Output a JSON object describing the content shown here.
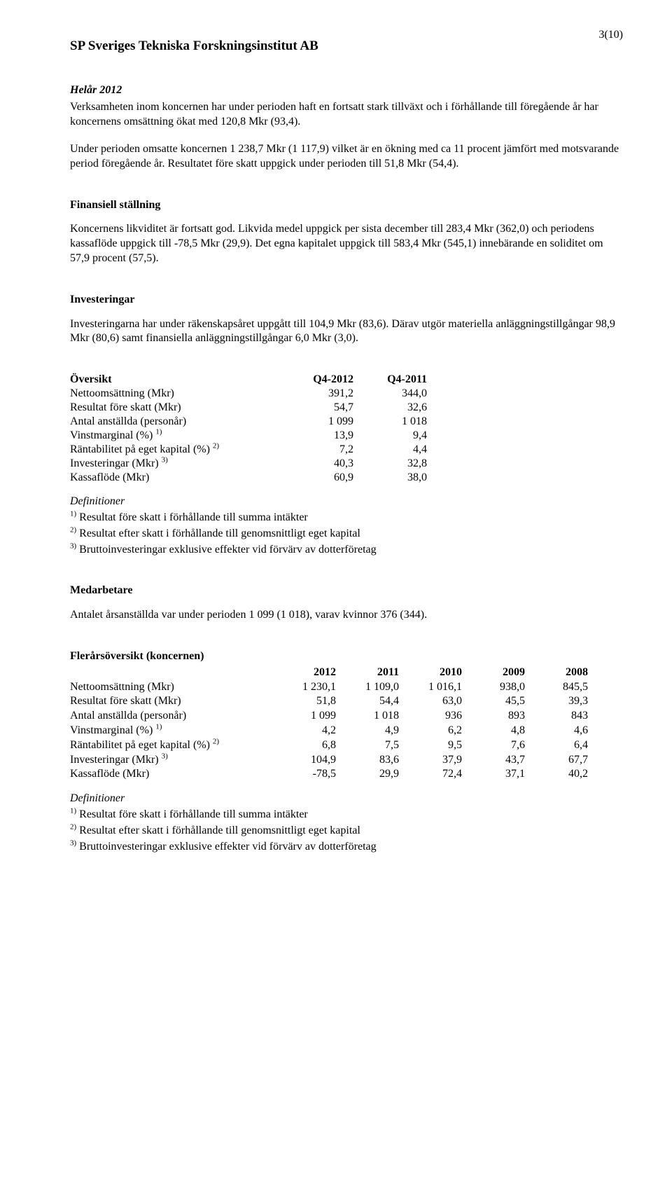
{
  "page_number": "3(10)",
  "doc_title": "SP Sveriges Tekniska Forskningsinstitut AB",
  "helar": {
    "heading": "Helår 2012",
    "p1": "Verksamheten inom koncernen har under perioden haft en fortsatt stark tillväxt och i förhållande till föregående år har koncernens omsättning ökat med 120,8 Mkr (93,4).",
    "p2": "Under perioden omsatte koncernen 1 238,7 Mkr (1 117,9) vilket är en ökning med ca 11 procent jämfört med motsvarande period föregående år. Resultatet före skatt uppgick under perioden till 51,8 Mkr (54,4)."
  },
  "finansiell": {
    "heading": "Finansiell ställning",
    "p1": "Koncernens likviditet är fortsatt god. Likvida medel uppgick per sista december till 283,4 Mkr (362,0) och periodens kassaflöde uppgick till -78,5 Mkr (29,9). Det egna kapitalet uppgick till 583,4 Mkr (545,1) innebärande en soliditet om 57,9 procent (57,5)."
  },
  "invest": {
    "heading": "Investeringar",
    "p1": "Investeringarna har under räkenskapsåret uppgått till 104,9 Mkr (83,6). Därav utgör materiella anläggningstillgångar 98,9 Mkr (80,6) samt finansiella anläggningstillgångar 6,0 Mkr (3,0)."
  },
  "overview": {
    "heading": "Översikt",
    "columns": [
      "Q4-2012",
      "Q4-2011"
    ],
    "rows": [
      {
        "label": "Nettoomsättning (Mkr)",
        "sup": "",
        "v": [
          "391,2",
          "344,0"
        ]
      },
      {
        "label": "Resultat före skatt (Mkr)",
        "sup": "",
        "v": [
          "54,7",
          "32,6"
        ]
      },
      {
        "label": "Antal anställda (personår)",
        "sup": "",
        "v": [
          "1 099",
          "1 018"
        ]
      },
      {
        "label": "Vinstmarginal (%)",
        "sup": "1)",
        "v": [
          "13,9",
          "9,4"
        ]
      },
      {
        "label": "Räntabilitet på eget kapital (%)",
        "sup": "2)",
        "v": [
          "7,2",
          "4,4"
        ]
      },
      {
        "label": "Investeringar (Mkr)",
        "sup": "3)",
        "v": [
          "40,3",
          "32,8"
        ]
      },
      {
        "label": "Kassaflöde (Mkr)",
        "sup": "",
        "v": [
          "60,9",
          "38,0"
        ]
      }
    ]
  },
  "defs": {
    "heading": "Definitioner",
    "d1_sup": "1)",
    "d1": "Resultat före skatt i förhållande till summa intäkter",
    "d2_sup": "2)",
    "d2": "Resultat efter skatt i förhållande till genomsnittligt eget kapital",
    "d3_sup": "3)",
    "d3": "Bruttoinvesteringar exklusive effekter vid förvärv av dotterföretag"
  },
  "medarbetare": {
    "heading": "Medarbetare",
    "p1": "Antalet årsanställda var under perioden 1 099 (1 018), varav kvinnor 376 (344)."
  },
  "multi": {
    "heading": "Flerårsöversikt (koncernen)",
    "columns": [
      "2012",
      "2011",
      "2010",
      "2009",
      "2008"
    ],
    "rows": [
      {
        "label": "Nettoomsättning (Mkr)",
        "sup": "",
        "v": [
          "1 230,1",
          "1 109,0",
          "1 016,1",
          "938,0",
          "845,5"
        ]
      },
      {
        "label": "Resultat före skatt (Mkr)",
        "sup": "",
        "v": [
          "51,8",
          "54,4",
          "63,0",
          "45,5",
          "39,3"
        ]
      },
      {
        "label": "Antal anställda (personår)",
        "sup": "",
        "v": [
          "1 099",
          "1 018",
          "936",
          "893",
          "843"
        ]
      },
      {
        "label": "Vinstmarginal (%)",
        "sup": "1)",
        "v": [
          "4,2",
          "4,9",
          "6,2",
          "4,8",
          "4,6"
        ]
      },
      {
        "label": "Räntabilitet på eget kapital (%)",
        "sup": "2)",
        "v": [
          "6,8",
          "7,5",
          "9,5",
          "7,6",
          "6,4"
        ]
      },
      {
        "label": "Investeringar (Mkr)",
        "sup": "3)",
        "v": [
          "104,9",
          "83,6",
          "37,9",
          "43,7",
          "67,7"
        ]
      },
      {
        "label": "Kassaflöde (Mkr)",
        "sup": "",
        "v": [
          "-78,5",
          "29,9",
          "72,4",
          "37,1",
          "40,2"
        ]
      }
    ]
  }
}
